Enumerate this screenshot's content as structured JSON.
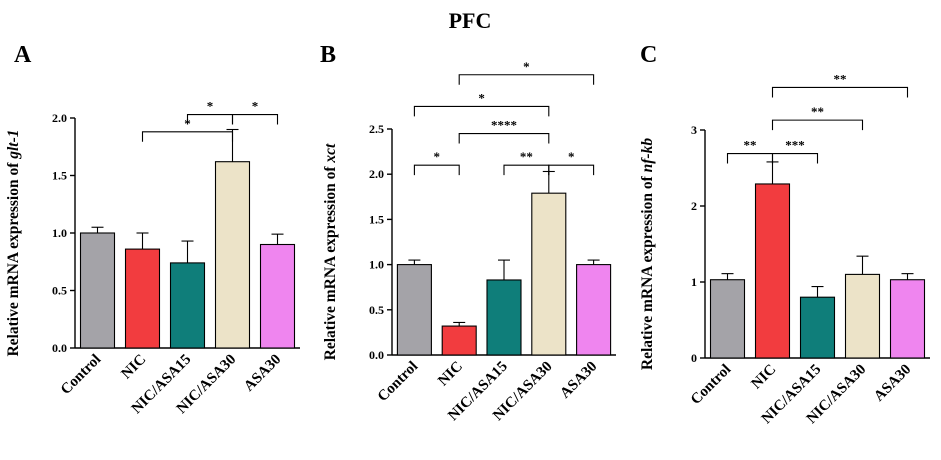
{
  "figure_title": "PFC",
  "colors": [
    "#a4a3a8",
    "#f23c3f",
    "#0f7e7a",
    "#ece3c8",
    "#ef85ef"
  ],
  "chart_data": [
    {
      "panel": "A",
      "type": "bar",
      "categories": [
        "Control",
        "NIC",
        "NIC/ASA15",
        "NIC/ASA30",
        "ASA30"
      ],
      "values": [
        1.0,
        0.86,
        0.74,
        1.62,
        0.9
      ],
      "errors": [
        0.05,
        0.14,
        0.19,
        0.28,
        0.09
      ],
      "ylabel_prefix": "Relative mRNA expression of ",
      "ylabel_gene": "glt-1",
      "ylim": [
        0,
        2.0
      ],
      "yticks": [
        0.0,
        0.5,
        1.0,
        1.5,
        2.0
      ],
      "tick_decimals": 1,
      "significance": [
        {
          "from": 1,
          "to": 3,
          "label": "*",
          "level": 1.88
        },
        {
          "from": 2,
          "to": 3,
          "label": "*",
          "level": 2.03
        },
        {
          "from": 3,
          "to": 4,
          "label": "*",
          "level": 2.03
        }
      ]
    },
    {
      "panel": "B",
      "type": "bar",
      "categories": [
        "Control",
        "NIC",
        "NIC/ASA15",
        "NIC/ASA30",
        "ASA30"
      ],
      "values": [
        1.0,
        0.32,
        0.83,
        1.79,
        1.0
      ],
      "errors": [
        0.05,
        0.04,
        0.22,
        0.24,
        0.05
      ],
      "ylabel_prefix": "Relative mRNA expression of ",
      "ylabel_gene": "xct",
      "ylim": [
        0,
        2.5
      ],
      "yticks": [
        0.0,
        0.5,
        1.0,
        1.5,
        2.0,
        2.5
      ],
      "tick_decimals": 1,
      "significance": [
        {
          "from": 1,
          "to": 4,
          "label": "*",
          "level": 3.1
        },
        {
          "from": 0,
          "to": 3,
          "label": "*",
          "level": 2.75
        },
        {
          "from": 1,
          "to": 3,
          "label": "****",
          "level": 2.45
        },
        {
          "from": 0,
          "to": 1,
          "label": "*",
          "level": 2.1
        },
        {
          "from": 2,
          "to": 3,
          "label": "**",
          "level": 2.1
        },
        {
          "from": 3,
          "to": 4,
          "label": "*",
          "level": 2.1
        }
      ]
    },
    {
      "panel": "C",
      "type": "bar",
      "categories": [
        "Control",
        "NIC",
        "NIC/ASA15",
        "NIC/ASA30",
        "ASA30"
      ],
      "values": [
        1.03,
        2.29,
        0.8,
        1.1,
        1.03
      ],
      "errors": [
        0.08,
        0.29,
        0.14,
        0.24,
        0.08
      ],
      "ylabel_prefix": "Relative mRNA expression of ",
      "ylabel_gene": "nf-kb",
      "ylim": [
        0,
        3
      ],
      "yticks": [
        0,
        1,
        2,
        3
      ],
      "tick_decimals": 0,
      "significance": [
        {
          "from": 1,
          "to": 4,
          "label": "**",
          "level": 3.56
        },
        {
          "from": 1,
          "to": 3,
          "label": "**",
          "level": 3.13
        },
        {
          "from": 0,
          "to": 1,
          "label": "**",
          "level": 2.69
        },
        {
          "from": 1,
          "to": 2,
          "label": "***",
          "level": 2.69
        }
      ]
    }
  ]
}
